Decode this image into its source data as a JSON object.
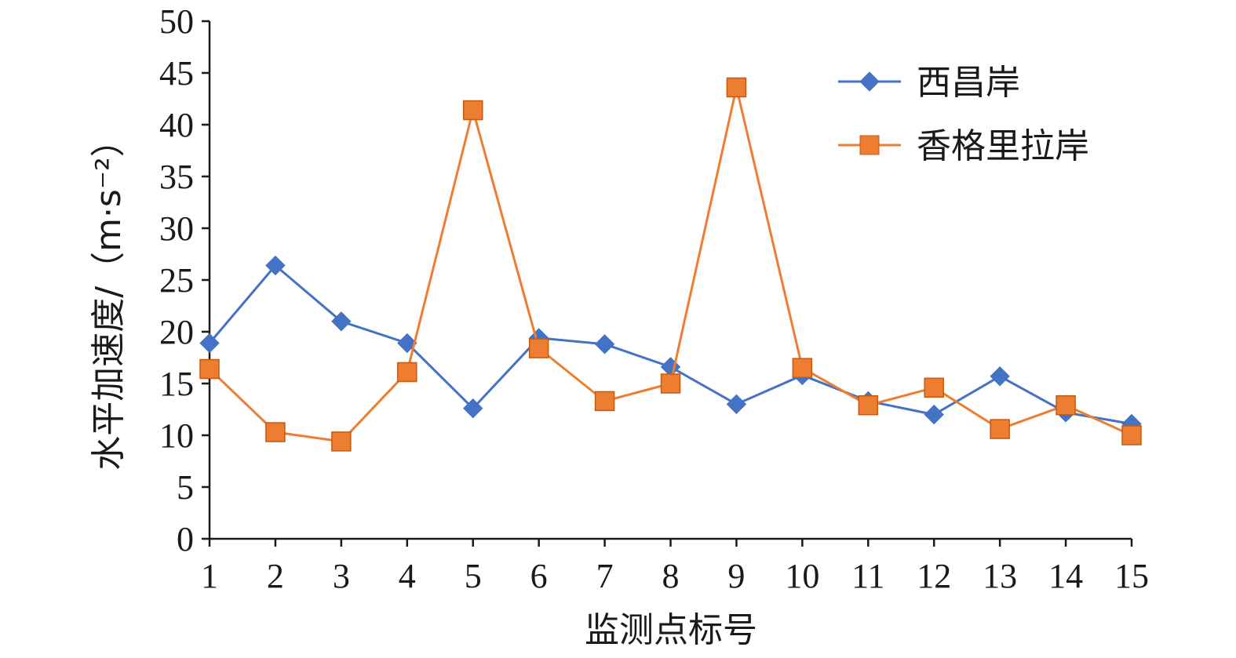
{
  "chart_data": {
    "type": "line",
    "x": [
      1,
      2,
      3,
      4,
      5,
      6,
      7,
      8,
      9,
      10,
      11,
      12,
      13,
      14,
      15
    ],
    "xlabel": "监测点标号",
    "ylabel": "水平加速度/（m·s⁻²）",
    "ylim": [
      0,
      50
    ],
    "yticks": [
      0,
      5,
      10,
      15,
      20,
      25,
      30,
      35,
      40,
      45,
      50
    ],
    "grid": false,
    "legend_position": "top-right",
    "series": [
      {
        "name": "西昌岸",
        "color": "#4472C4",
        "marker": "diamond",
        "values": [
          18.9,
          26.4,
          21.0,
          18.9,
          12.6,
          19.4,
          18.8,
          16.6,
          13.0,
          15.8,
          13.3,
          12.0,
          15.7,
          12.2,
          11.1
        ]
      },
      {
        "name": "香格里拉岸",
        "color": "#ED7D31",
        "marker": "square",
        "values": [
          16.4,
          10.3,
          9.4,
          16.1,
          41.4,
          18.4,
          13.3,
          15.0,
          43.6,
          16.5,
          12.9,
          14.6,
          10.6,
          12.9,
          10.0
        ]
      }
    ]
  }
}
